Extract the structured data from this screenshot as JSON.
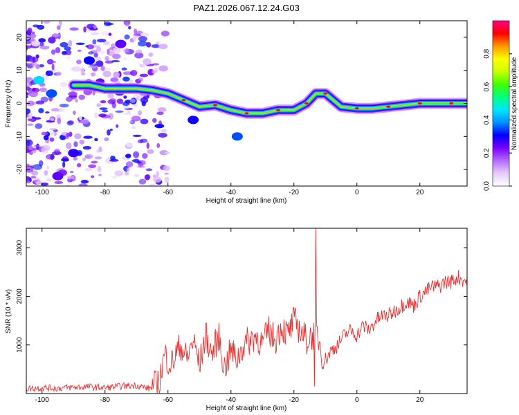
{
  "figure_title": "PAZ1.2026.067.12.24.G03",
  "chart_data": [
    {
      "type": "heatmap",
      "title": "PAZ1.2026.067.12.24.G03",
      "xlabel": "Height of straight line (km)",
      "ylabel": "Frequency (Hz)",
      "xlim": [
        -105,
        35
      ],
      "ylim": [
        -25,
        25
      ],
      "xticks": [
        -100,
        -80,
        -60,
        -40,
        -20,
        0,
        20
      ],
      "yticks": [
        -20,
        -10,
        0,
        10,
        20
      ],
      "xtick_labels": [
        "-100",
        "-80",
        "-60",
        "-40",
        "-20",
        "0",
        "20"
      ],
      "ytick_labels": [
        "-20",
        "-10",
        "0",
        "10",
        "20"
      ],
      "colorbar": {
        "label": "Normalized spectral amplitude",
        "range": [
          0,
          1
        ],
        "ticks": [
          0.0,
          0.2,
          0.4,
          0.6,
          0.8
        ],
        "tick_labels": [
          "0.0",
          "0.2",
          "0.4",
          "0.6",
          "0.8"
        ],
        "colormap": "rainbow-inverted",
        "stops": [
          "#ffffff",
          "#e6ccff",
          "#b36bff",
          "#7a00ff",
          "#0000ff",
          "#0090ff",
          "#00e5ff",
          "#00ff80",
          "#40ff00",
          "#c8ff00",
          "#ffff00",
          "#ff9900",
          "#ff0000",
          "#ff0080"
        ]
      },
      "ridge": [
        {
          "x": -90,
          "y": 5.5
        },
        {
          "x": -85,
          "y": 5.5
        },
        {
          "x": -80,
          "y": 4.5
        },
        {
          "x": -75,
          "y": 4.5
        },
        {
          "x": -70,
          "y": 4.5
        },
        {
          "x": -65,
          "y": 4
        },
        {
          "x": -60,
          "y": 3
        },
        {
          "x": -55,
          "y": 1
        },
        {
          "x": -50,
          "y": -1
        },
        {
          "x": -45,
          "y": -0.5
        },
        {
          "x": -40,
          "y": -2
        },
        {
          "x": -35,
          "y": -3
        },
        {
          "x": -30,
          "y": -3
        },
        {
          "x": -25,
          "y": -2
        },
        {
          "x": -20,
          "y": -2
        },
        {
          "x": -16,
          "y": 0
        },
        {
          "x": -13,
          "y": 3
        },
        {
          "x": -10,
          "y": 3
        },
        {
          "x": -5,
          "y": -1
        },
        {
          "x": 0,
          "y": -1.5
        },
        {
          "x": 5,
          "y": -1.5
        },
        {
          "x": 10,
          "y": -1
        },
        {
          "x": 15,
          "y": -0.5
        },
        {
          "x": 20,
          "y": 0
        },
        {
          "x": 25,
          "y": 0
        },
        {
          "x": 30,
          "y": 0
        },
        {
          "x": 35,
          "y": 0
        }
      ],
      "patches": [
        {
          "x": -101,
          "y": 7,
          "a": 0.45
        },
        {
          "x": -97,
          "y": 3,
          "a": 0.35
        },
        {
          "x": -38,
          "y": -10,
          "a": 0.35
        },
        {
          "x": -52,
          "y": -5,
          "a": 0.3
        },
        {
          "x": -85,
          "y": 13,
          "a": 0.3
        },
        {
          "x": -90,
          "y": -15,
          "a": 0.28
        },
        {
          "x": -75,
          "y": 18,
          "a": 0.25
        },
        {
          "x": -95,
          "y": -22,
          "a": 0.25
        }
      ]
    },
    {
      "type": "line",
      "xlabel": "Height of straight line (km)",
      "ylabel": "SNR (10 * v/v)",
      "xlim": [
        -105,
        35
      ],
      "ylim": [
        0,
        3400
      ],
      "xticks": [
        -100,
        -80,
        -60,
        -40,
        -20,
        0,
        20
      ],
      "yticks": [
        1000,
        2000,
        3000
      ],
      "xtick_labels": [
        "-100",
        "-80",
        "-60",
        "-40",
        "-20",
        "0",
        "20"
      ],
      "ytick_labels": [
        "1000",
        "2000",
        "3000"
      ],
      "color": "#e83030",
      "series": [
        {
          "name": "SNR",
          "x": [
            -105,
            -100,
            -95,
            -90,
            -85,
            -80,
            -75,
            -70,
            -66,
            -63,
            -61,
            -59,
            -56,
            -54,
            -52,
            -50,
            -48,
            -46,
            -44,
            -42,
            -40,
            -38,
            -36,
            -34,
            -32,
            -30,
            -28,
            -26,
            -24,
            -22,
            -20,
            -18,
            -16,
            -14,
            -13,
            -12,
            -11,
            -10,
            -8,
            -6,
            -4,
            -2,
            0,
            2,
            4,
            6,
            8,
            10,
            12,
            14,
            16,
            18,
            20,
            22,
            24,
            26,
            28,
            30,
            32,
            35
          ],
          "y": [
            100,
            120,
            110,
            130,
            140,
            120,
            150,
            170,
            100,
            200,
            800,
            600,
            1000,
            700,
            1100,
            600,
            1200,
            800,
            1200,
            500,
            900,
            700,
            1000,
            1100,
            1200,
            1000,
            1300,
            1100,
            1400,
            1200,
            1500,
            1300,
            1100,
            1200,
            1300,
            1100,
            800,
            700,
            900,
            1000,
            1200,
            1300,
            1200,
            1400,
            1300,
            1500,
            1600,
            1600,
            1700,
            1800,
            1900,
            1800,
            2000,
            2100,
            2200,
            2200,
            2300,
            2300,
            2400,
            2300
          ]
        }
      ],
      "annotations": [
        {
          "x": -13,
          "y": 3400,
          "text": ""
        }
      ]
    }
  ]
}
